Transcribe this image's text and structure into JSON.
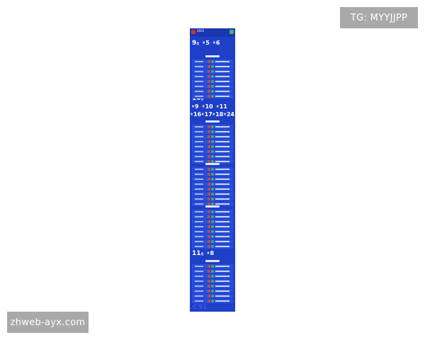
{
  "watermarks": {
    "top": "TG: MYYJJPP",
    "bottom": "zhweb-ayx.com"
  },
  "poster": {
    "header_year": "2025",
    "colors": {
      "background": "#1e3fc8",
      "row": "#2a4fd8"
    },
    "months": [
      {
        "label": "9",
        "unit": "月",
        "days": [
          "5",
          "6"
        ]
      },
      {
        "label": "10",
        "unit": "月",
        "days": [
          "9",
          "10",
          "11",
          "16",
          "17",
          "18",
          "24"
        ]
      },
      {
        "label": "11",
        "unit": "月",
        "days": [
          "8"
        ]
      }
    ]
  }
}
